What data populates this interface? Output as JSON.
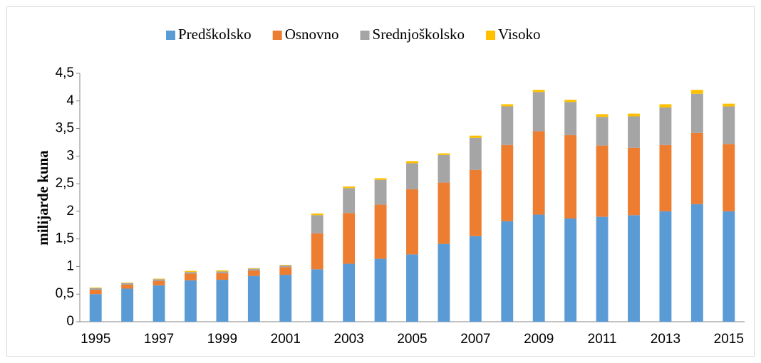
{
  "chart_data": {
    "type": "bar",
    "stacked": true,
    "ylabel": "milijarde kuna",
    "categories": [
      "1995",
      null,
      "1997",
      null,
      "1999",
      null,
      "2001",
      null,
      "2003",
      null,
      "2005",
      null,
      "2007",
      null,
      "2009",
      null,
      "2011",
      null,
      "2013",
      null,
      "2015"
    ],
    "series": [
      {
        "name": "Predškolsko",
        "color": "#5b9bd5",
        "values": [
          0.5,
          0.6,
          0.66,
          0.75,
          0.76,
          0.83,
          0.85,
          0.95,
          1.05,
          1.14,
          1.22,
          1.41,
          1.55,
          1.82,
          1.94,
          1.87,
          1.9,
          1.93,
          2.0,
          2.13,
          2.0
        ]
      },
      {
        "name": "Osnovno",
        "color": "#ed7d31",
        "values": [
          0.08,
          0.07,
          0.08,
          0.12,
          0.12,
          0.1,
          0.14,
          0.65,
          0.92,
          0.98,
          1.18,
          1.11,
          1.2,
          1.38,
          1.51,
          1.51,
          1.29,
          1.22,
          1.2,
          1.29,
          1.22
        ]
      },
      {
        "name": "Srednjoškolsko",
        "color": "#a5a5a5",
        "values": [
          0.03,
          0.03,
          0.03,
          0.03,
          0.03,
          0.03,
          0.03,
          0.33,
          0.45,
          0.45,
          0.47,
          0.5,
          0.58,
          0.7,
          0.71,
          0.6,
          0.52,
          0.57,
          0.68,
          0.71,
          0.68
        ]
      },
      {
        "name": "Visoko",
        "color": "#ffc000",
        "values": [
          0.01,
          0.01,
          0.01,
          0.02,
          0.02,
          0.01,
          0.01,
          0.03,
          0.03,
          0.03,
          0.04,
          0.03,
          0.04,
          0.04,
          0.04,
          0.04,
          0.05,
          0.05,
          0.06,
          0.07,
          0.05
        ]
      }
    ],
    "ylim": [
      0,
      4.5
    ],
    "yticks": [
      0,
      {
        "value": 0.5,
        "label": "0,5"
      },
      1,
      {
        "value": 1.5,
        "label": "1,5"
      },
      2,
      {
        "value": 2.5,
        "label": "2,5"
      },
      3,
      {
        "value": 3.5,
        "label": "3,5"
      },
      4,
      {
        "value": 4.5,
        "label": "4,5"
      }
    ],
    "legend": "top",
    "grid": false
  }
}
